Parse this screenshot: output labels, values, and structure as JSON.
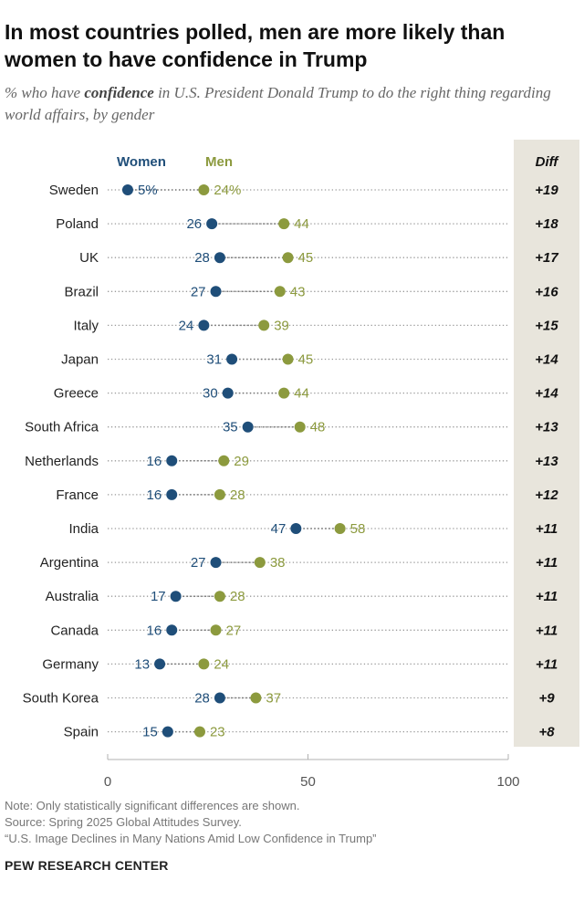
{
  "title": "In most countries polled, men are more likely than women to have confidence in Trump",
  "subtitle": {
    "before": "% who have ",
    "emphasis": "confidence",
    "after": " in U.S. President Donald Trump to do the right thing regarding world affairs, by gender"
  },
  "colors": {
    "women": "#1f4e79",
    "men": "#8c9a3e",
    "diff_bg": "#e8e5dc",
    "dots_line": "#9a9a9a",
    "axis": "#b0b0b0"
  },
  "chart_data": {
    "type": "dot-plot",
    "series": [
      {
        "name": "Women",
        "values": [
          5,
          26,
          28,
          27,
          24,
          31,
          30,
          35,
          16,
          16,
          47,
          27,
          17,
          16,
          13,
          28,
          15
        ]
      },
      {
        "name": "Men",
        "values": [
          24,
          44,
          45,
          43,
          39,
          45,
          44,
          48,
          29,
          28,
          58,
          38,
          28,
          27,
          24,
          37,
          23
        ]
      }
    ],
    "categories": [
      "Sweden",
      "Poland",
      "UK",
      "Brazil",
      "Italy",
      "Japan",
      "Greece",
      "South Africa",
      "Netherlands",
      "France",
      "India",
      "Argentina",
      "Australia",
      "Canada",
      "Germany",
      "South Korea",
      "Spain"
    ],
    "diff": [
      "+19",
      "+18",
      "+17",
      "+16",
      "+15",
      "+14",
      "+14",
      "+13",
      "+13",
      "+12",
      "+11",
      "+11",
      "+11",
      "+11",
      "+11",
      "+9",
      "+8"
    ],
    "diff_header": "Diff",
    "first_women_label": "5%",
    "first_men_label": "24%",
    "x_ticks": [
      0,
      50,
      100
    ],
    "xlim": [
      0,
      100
    ]
  },
  "footer": {
    "note": "Note: Only statistically significant differences are shown.",
    "source": "Source: Spring 2025 Global Attitudes Survey.",
    "report": "“U.S. Image Declines in Many Nations Amid Low Confidence in Trump”"
  },
  "brand": "PEW RESEARCH CENTER"
}
